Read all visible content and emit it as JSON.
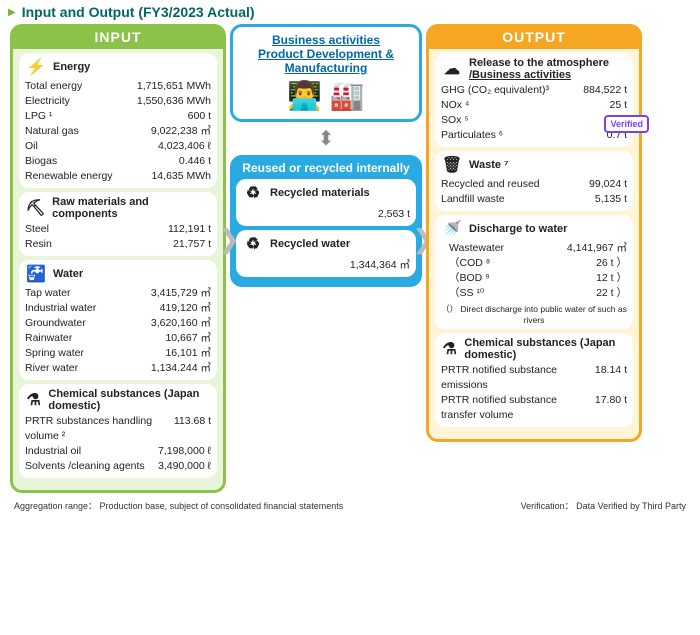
{
  "title": "Input and Output (FY3/2023 Actual)",
  "headers": {
    "input": "INPUT",
    "output": "OUTPUT"
  },
  "input": {
    "energy": {
      "title": "Energy",
      "rows": [
        {
          "l": "Total energy",
          "v": "1,715,651 MWh"
        },
        {
          "l": "Electricity",
          "v": "1,550,636 MWh"
        },
        {
          "l": "LPG ¹",
          "v": "600 t"
        },
        {
          "l": "Natural gas",
          "v": "9,022,238 ㎥"
        },
        {
          "l": "Oil",
          "v": "4,023,406 ℓ"
        },
        {
          "l": "Biogas",
          "v": "0.446 t"
        },
        {
          "l": "Renewable energy",
          "v": "14,635 MWh"
        }
      ]
    },
    "raw": {
      "title": "Raw materials and components",
      "rows": [
        {
          "l": "Steel",
          "v": "112,191 t"
        },
        {
          "l": "Resin",
          "v": "21,757 t"
        }
      ]
    },
    "water": {
      "title": "Water",
      "rows": [
        {
          "l": "Tap water",
          "v": "3,415,729 ㎥"
        },
        {
          "l": "Industrial water",
          "v": "419,120 ㎥"
        },
        {
          "l": "Groundwater",
          "v": "3,620,160 ㎥"
        },
        {
          "l": "Rainwater",
          "v": "10,667 ㎥"
        },
        {
          "l": "Spring water",
          "v": "16,101 ㎥"
        },
        {
          "l": "River water",
          "v": "1,134.244 ㎥"
        }
      ]
    },
    "chem": {
      "title": "Chemical substances (Japan domestic)",
      "rows": [
        {
          "l": "PRTR substances handling volume ²",
          "v": "113.68 t"
        },
        {
          "l": "Industrial oil",
          "v": "7,198,000 ℓ"
        },
        {
          "l": "Solvents /cleaning agents",
          "v": "3,490,000 ℓ"
        }
      ]
    }
  },
  "middle": {
    "biz_title_l1": "Business activities",
    "biz_title_l2": "Product Development & Manufacturing",
    "reuse_head": "Reused or recycled internally",
    "rmat": {
      "title": "Recycled materials",
      "v": "2,563 t"
    },
    "rwater": {
      "title": "Recycled water",
      "v": "1,344,364 ㎥"
    }
  },
  "output": {
    "verified_label": "Verified",
    "atm": {
      "title_l1": "Release to the atmosphere",
      "title_l2": "/Business activities",
      "rows": [
        {
          "l": "GHG (CO₂ equivalent)³",
          "v": "884,522 t"
        },
        {
          "l": "NOx ⁴",
          "v": "25 t"
        },
        {
          "l": "SOx ⁵",
          "v": "2 t"
        },
        {
          "l": "Particulates ⁶",
          "v": "0.7 t"
        }
      ]
    },
    "waste": {
      "title": "Waste ⁷",
      "rows": [
        {
          "l": "Recycled and reused",
          "v": "99,024 t"
        },
        {
          "l": "Landfill waste",
          "v": "5,135 t"
        }
      ]
    },
    "dwater": {
      "title": "Discharge to water",
      "rows": [
        {
          "l": "Wastewater",
          "v": "4,141,967 ㎥"
        },
        {
          "l": "（COD ⁸",
          "v": "26 t ）"
        },
        {
          "l": "（BOD ⁹",
          "v": "12 t ）"
        },
        {
          "l": "（SS ¹⁰",
          "v": "22 t ）"
        }
      ],
      "note": "（） Direct discharge into public water of such as rivers"
    },
    "chem": {
      "title": "Chemical substances (Japan domestic)",
      "rows": [
        {
          "l": "PRTR notified substance emissions",
          "v": "18.14 t"
        },
        {
          "l": "PRTR notified substance transfer volume",
          "v": "17.80 t"
        }
      ]
    }
  },
  "footer": {
    "left": "Aggregation range： Production base, subject of consolidated financial statements",
    "right": "Verification： Data Verified by Third Party"
  }
}
